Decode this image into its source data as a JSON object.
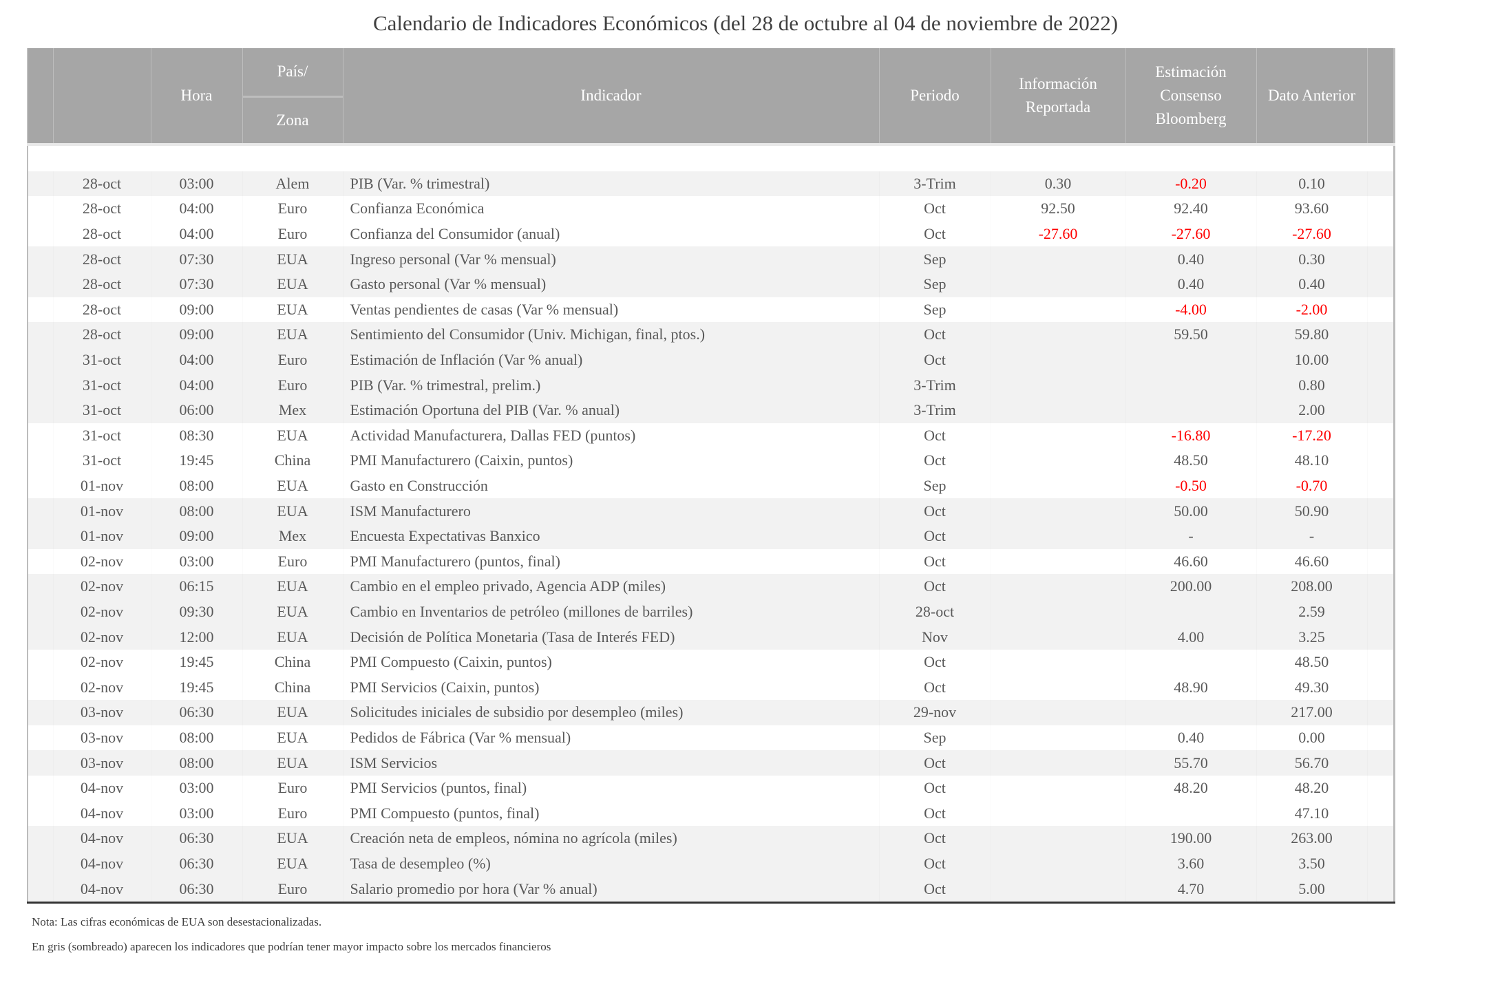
{
  "title": "Calendario de Indicadores Económicos (del 28 de octubre al 04 de noviembre de 2022)",
  "header": {
    "hora": "Hora",
    "pais_top": "País/",
    "pais_bottom": "Zona",
    "indicador": "Indicador",
    "periodo": "Periodo",
    "informacion": [
      "Información",
      "Reportada"
    ],
    "estimacion": [
      "Estimación",
      "Consenso",
      "Bloomberg"
    ],
    "anterior": "Dato Anterior"
  },
  "colors": {
    "header_bg": "#a6a6a6",
    "shaded_row": "#f2f2f2",
    "negative": "#ff0000"
  },
  "rows": [
    {
      "fecha": "28-oct",
      "hora": "03:00",
      "zona": "Alem",
      "indicador": "PIB (Var. % trimestral)",
      "periodo": "3-Trim",
      "reportada": "0.30",
      "estimacion": "-0.20",
      "anterior": "0.10",
      "shaded": true
    },
    {
      "fecha": "28-oct",
      "hora": "04:00",
      "zona": "Euro",
      "indicador": "Confianza Económica",
      "periodo": "Oct",
      "reportada": "92.50",
      "estimacion": "92.40",
      "anterior": "93.60",
      "shaded": false
    },
    {
      "fecha": "28-oct",
      "hora": "04:00",
      "zona": "Euro",
      "indicador": "Confianza del Consumidor (anual)",
      "periodo": "Oct",
      "reportada": "-27.60",
      "estimacion": "-27.60",
      "anterior": "-27.60",
      "shaded": false
    },
    {
      "fecha": "28-oct",
      "hora": "07:30",
      "zona": "EUA",
      "indicador": "Ingreso personal (Var % mensual)",
      "periodo": "Sep",
      "reportada": "",
      "estimacion": "0.40",
      "anterior": "0.30",
      "shaded": true
    },
    {
      "fecha": "28-oct",
      "hora": "07:30",
      "zona": "EUA",
      "indicador": "Gasto personal (Var % mensual)",
      "periodo": "Sep",
      "reportada": "",
      "estimacion": "0.40",
      "anterior": "0.40",
      "shaded": true
    },
    {
      "fecha": "28-oct",
      "hora": "09:00",
      "zona": "EUA",
      "indicador": "Ventas pendientes de casas (Var % mensual)",
      "periodo": "Sep",
      "reportada": "",
      "estimacion": "-4.00",
      "anterior": "-2.00",
      "shaded": false
    },
    {
      "fecha": "28-oct",
      "hora": "09:00",
      "zona": "EUA",
      "indicador": "Sentimiento del Consumidor (Univ. Michigan, final, ptos.)",
      "periodo": "Oct",
      "reportada": "",
      "estimacion": "59.50",
      "anterior": "59.80",
      "shaded": true
    },
    {
      "fecha": "31-oct",
      "hora": "04:00",
      "zona": "Euro",
      "indicador": "Estimación de Inflación (Var % anual)",
      "periodo": "Oct",
      "reportada": "",
      "estimacion": "",
      "anterior": "10.00",
      "shaded": true
    },
    {
      "fecha": "31-oct",
      "hora": "04:00",
      "zona": "Euro",
      "indicador": "PIB (Var. % trimestral, prelim.)",
      "periodo": "3-Trim",
      "reportada": "",
      "estimacion": "",
      "anterior": "0.80",
      "shaded": true
    },
    {
      "fecha": "31-oct",
      "hora": "06:00",
      "zona": "Mex",
      "indicador": "Estimación Oportuna del PIB (Var. % anual)",
      "periodo": "3-Trim",
      "reportada": "",
      "estimacion": "",
      "anterior": "2.00",
      "shaded": true
    },
    {
      "fecha": "31-oct",
      "hora": "08:30",
      "zona": "EUA",
      "indicador": "Actividad Manufacturera, Dallas FED (puntos)",
      "periodo": "Oct",
      "reportada": "",
      "estimacion": "-16.80",
      "anterior": "-17.20",
      "shaded": false
    },
    {
      "fecha": "31-oct",
      "hora": "19:45",
      "zona": "China",
      "indicador": "PMI Manufacturero (Caixin, puntos)",
      "periodo": "Oct",
      "reportada": "",
      "estimacion": "48.50",
      "anterior": "48.10",
      "shaded": false
    },
    {
      "fecha": "01-nov",
      "hora": "08:00",
      "zona": "EUA",
      "indicador": "Gasto en Construcción",
      "periodo": "Sep",
      "reportada": "",
      "estimacion": "-0.50",
      "anterior": "-0.70",
      "shaded": false
    },
    {
      "fecha": "01-nov",
      "hora": "08:00",
      "zona": "EUA",
      "indicador": "ISM Manufacturero",
      "periodo": "Oct",
      "reportada": "",
      "estimacion": "50.00",
      "anterior": "50.90",
      "shaded": true
    },
    {
      "fecha": "01-nov",
      "hora": "09:00",
      "zona": "Mex",
      "indicador": "Encuesta Expectativas Banxico",
      "periodo": "Oct",
      "reportada": "",
      "estimacion": "-",
      "anterior": "-",
      "shaded": true
    },
    {
      "fecha": "02-nov",
      "hora": "03:00",
      "zona": "Euro",
      "indicador": "PMI Manufacturero (puntos, final)",
      "periodo": "Oct",
      "reportada": "",
      "estimacion": "46.60",
      "anterior": "46.60",
      "shaded": false
    },
    {
      "fecha": "02-nov",
      "hora": "06:15",
      "zona": "EUA",
      "indicador": "Cambio en el empleo privado, Agencia ADP (miles)",
      "periodo": "Oct",
      "reportada": "",
      "estimacion": "200.00",
      "anterior": "208.00",
      "shaded": true
    },
    {
      "fecha": "02-nov",
      "hora": "09:30",
      "zona": "EUA",
      "indicador": "Cambio en Inventarios de petróleo (millones de barriles)",
      "periodo": "28-oct",
      "reportada": "",
      "estimacion": "",
      "anterior": "2.59",
      "shaded": true
    },
    {
      "fecha": "02-nov",
      "hora": "12:00",
      "zona": "EUA",
      "indicador": "Decisión de Política Monetaria (Tasa de Interés FED)",
      "periodo": "Nov",
      "reportada": "",
      "estimacion": "4.00",
      "anterior": "3.25",
      "shaded": true
    },
    {
      "fecha": "02-nov",
      "hora": "19:45",
      "zona": "China",
      "indicador": "PMI Compuesto (Caixin, puntos)",
      "periodo": "Oct",
      "reportada": "",
      "estimacion": "",
      "anterior": "48.50",
      "shaded": false
    },
    {
      "fecha": "02-nov",
      "hora": "19:45",
      "zona": "China",
      "indicador": "PMI Servicios (Caixin, puntos)",
      "periodo": "Oct",
      "reportada": "",
      "estimacion": "48.90",
      "anterior": "49.30",
      "shaded": false
    },
    {
      "fecha": "03-nov",
      "hora": "06:30",
      "zona": "EUA",
      "indicador": "Solicitudes iniciales de subsidio por desempleo (miles)",
      "periodo": "29-nov",
      "reportada": "",
      "estimacion": "",
      "anterior": "217.00",
      "shaded": true
    },
    {
      "fecha": "03-nov",
      "hora": "08:00",
      "zona": "EUA",
      "indicador": "Pedidos de Fábrica (Var % mensual)",
      "periodo": "Sep",
      "reportada": "",
      "estimacion": "0.40",
      "anterior": "0.00",
      "shaded": false
    },
    {
      "fecha": "03-nov",
      "hora": "08:00",
      "zona": "EUA",
      "indicador": "ISM Servicios",
      "periodo": "Oct",
      "reportada": "",
      "estimacion": "55.70",
      "anterior": "56.70",
      "shaded": true
    },
    {
      "fecha": "04-nov",
      "hora": "03:00",
      "zona": "Euro",
      "indicador": "PMI Servicios (puntos, final)",
      "periodo": "Oct",
      "reportada": "",
      "estimacion": "48.20",
      "anterior": "48.20",
      "shaded": false
    },
    {
      "fecha": "04-nov",
      "hora": "03:00",
      "zona": "Euro",
      "indicador": "PMI Compuesto (puntos, final)",
      "periodo": "Oct",
      "reportada": "",
      "estimacion": "",
      "anterior": "47.10",
      "shaded": false
    },
    {
      "fecha": "04-nov",
      "hora": "06:30",
      "zona": "EUA",
      "indicador": "Creación neta de empleos, nómina no agrícola (miles)",
      "periodo": "Oct",
      "reportada": "",
      "estimacion": "190.00",
      "anterior": "263.00",
      "shaded": true
    },
    {
      "fecha": "04-nov",
      "hora": "06:30",
      "zona": "EUA",
      "indicador": "Tasa de desempleo (%)",
      "periodo": "Oct",
      "reportada": "",
      "estimacion": "3.60",
      "anterior": "3.50",
      "shaded": true
    },
    {
      "fecha": "04-nov",
      "hora": "06:30",
      "zona": "Euro",
      "indicador": "Salario promedio por hora (Var % anual)",
      "periodo": "Oct",
      "reportada": "",
      "estimacion": "4.70",
      "anterior": "5.00",
      "shaded": true
    }
  ],
  "notes": [
    "Nota: Las cifras económicas de EUA son desestacionalizadas.",
    "En gris (sombreado) aparecen los indicadores que podrían tener mayor impacto sobre los mercados financieros"
  ]
}
